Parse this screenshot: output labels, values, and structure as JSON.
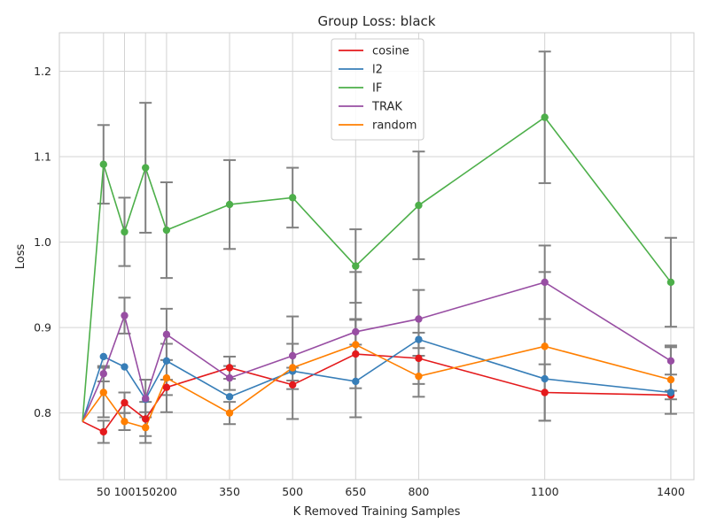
{
  "chart_data": {
    "type": "line",
    "title": "Group Loss: black",
    "xlabel": "K Removed Training Samples",
    "ylabel": "Loss",
    "xlim": [
      -55,
      1455
    ],
    "ylim": [
      0.722,
      1.245
    ],
    "x_ticks": [
      50,
      100,
      150,
      200,
      350,
      500,
      650,
      800,
      1100,
      1400
    ],
    "x_tick_labels": [
      "50",
      "100",
      "150",
      "200",
      "350",
      "500",
      "650",
      "800",
      "1100",
      "1400"
    ],
    "y_ticks": [
      0.8,
      0.9,
      1.0,
      1.1,
      1.2
    ],
    "y_tick_labels": [
      "0.8",
      "0.9",
      "1.0",
      "1.1",
      "1.2"
    ],
    "grid": true,
    "legend_position": "top-center",
    "errorbar_color": "#808080",
    "x": [
      0,
      50,
      100,
      150,
      200,
      350,
      500,
      650,
      800,
      1100,
      1400
    ],
    "series": [
      {
        "name": "cosine",
        "color": "#e41a1c",
        "values": [
          0.79,
          0.778,
          0.812,
          0.793,
          0.83,
          0.853,
          0.833,
          0.869,
          0.864,
          0.824,
          0.821
        ],
        "errors": [
          null,
          0.013,
          0.012,
          0.02,
          0.009,
          0.013,
          0.005,
          0.04,
          0.03,
          0.033,
          0.005
        ]
      },
      {
        "name": "l2",
        "color": "#377eb8",
        "values": [
          0.79,
          0.866,
          0.854,
          0.816,
          0.861,
          0.819,
          0.849,
          0.837,
          0.886,
          0.84,
          0.824
        ]
      },
      {
        "name": "IF",
        "color": "#4daf4a",
        "values": [
          0.79,
          1.091,
          1.012,
          1.087,
          1.014,
          1.044,
          1.052,
          0.972,
          1.043,
          1.146,
          0.953
        ],
        "errors": [
          null,
          0.046,
          0.04,
          0.076,
          0.056,
          0.052,
          0.035,
          0.043,
          0.063,
          0.077,
          0.052
        ]
      },
      {
        "name": "TRAK",
        "color": "#984ea3",
        "values": [
          0.79,
          0.846,
          0.914,
          0.817,
          0.892,
          0.841,
          0.867,
          0.895,
          0.91,
          0.953,
          0.861
        ],
        "errors": [
          null,
          0.009,
          0.021,
          0.022,
          0.03,
          0.014,
          0.014,
          0.015,
          0.034,
          0.043,
          0.016
        ]
      },
      {
        "name": "random",
        "color": "#ff7f00",
        "values": [
          0.79,
          0.824,
          0.79,
          0.783,
          0.841,
          0.8,
          0.853,
          0.88,
          0.843,
          0.878,
          0.839
        ],
        "errors": [
          null,
          0.029,
          0.01,
          0.018,
          0.04,
          0.013,
          0.06,
          0.085,
          0.024,
          0.087,
          0.04
        ]
      }
    ]
  }
}
